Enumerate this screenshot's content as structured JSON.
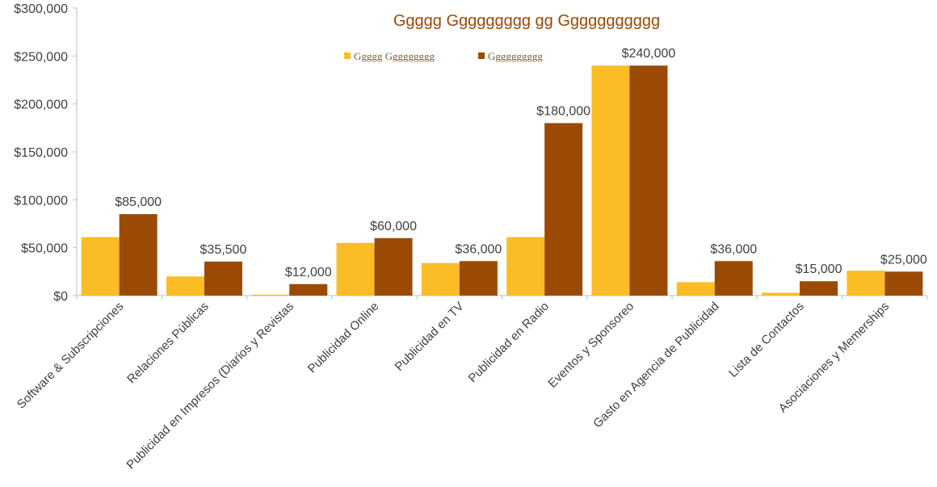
{
  "chart_data": {
    "type": "bar",
    "title": "Ggggg Ggggggggg gg Ggggggggggg",
    "categories": [
      "Software & Subscripciones",
      "Relaciones Públicas",
      "Publicidad en Impresos (Diarios y Revistas",
      "Publicidad Online",
      "Publicidad en TV",
      "Publicidad en Radio",
      "Eventos y Sponsoreo",
      "Gasto en Agencia de Publicidad",
      "Lista de Contactos",
      "Asociaciones y Memerships"
    ],
    "series": [
      {
        "name": "Ggggg Ggggggggg",
        "color": "#fbbd25",
        "values": [
          61000,
          20000,
          1000,
          55000,
          34000,
          61000,
          240000,
          14000,
          3000,
          26000
        ]
      },
      {
        "name": "Gggggggggg",
        "color": "#9b4a06",
        "values": [
          85000,
          35500,
          12000,
          60000,
          36000,
          180000,
          240000,
          36000,
          15000,
          25000
        ],
        "data_labels": [
          "$85,000",
          "$35,500",
          "$12,000",
          "$60,000",
          "$36,000",
          "$180,000",
          "$240,000",
          "$36,000",
          "$15,000",
          "$25,000"
        ]
      }
    ],
    "ylim": [
      0,
      300000
    ],
    "yticks": [
      0,
      50000,
      100000,
      150000,
      200000,
      250000,
      300000
    ],
    "ytick_labels": [
      "$0",
      "$50,000",
      "$100,000",
      "$150,000",
      "$200,000",
      "$250,000",
      "$300,000"
    ],
    "xlabel": "",
    "ylabel": "",
    "grid": false,
    "legend_position": "top-center"
  }
}
